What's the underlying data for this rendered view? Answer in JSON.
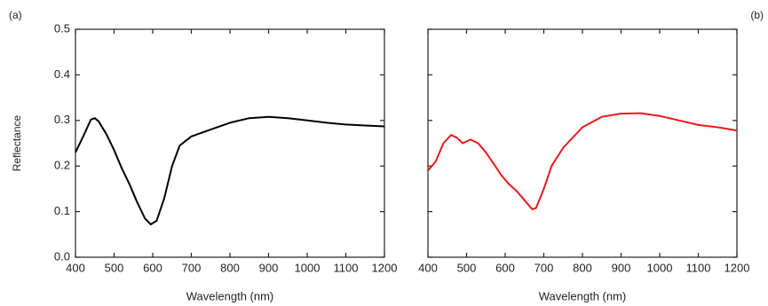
{
  "chart_data": [
    {
      "type": "line",
      "panel_label": "(a)",
      "xlabel": "Wavelength (nm)",
      "ylabel": "Reflectance",
      "x": [
        400,
        420,
        440,
        450,
        460,
        480,
        500,
        520,
        540,
        560,
        580,
        595,
        610,
        630,
        650,
        670,
        700,
        750,
        800,
        850,
        900,
        950,
        1000,
        1050,
        1100,
        1150,
        1200
      ],
      "series": [
        {
          "color": "#000000",
          "values": [
            0.23,
            0.265,
            0.302,
            0.305,
            0.298,
            0.27,
            0.235,
            0.195,
            0.16,
            0.12,
            0.085,
            0.072,
            0.08,
            0.13,
            0.2,
            0.245,
            0.265,
            0.28,
            0.295,
            0.305,
            0.308,
            0.305,
            0.3,
            0.295,
            0.291,
            0.289,
            0.287
          ]
        }
      ],
      "xlim": [
        400,
        1200
      ],
      "ylim": [
        0,
        0.5
      ],
      "xticks": [
        400,
        500,
        600,
        700,
        800,
        900,
        1000,
        1100,
        1200
      ],
      "yticks": [
        {
          "value": 0,
          "label": "0.0"
        },
        0.1,
        0.2,
        0.3,
        0.4,
        0.5
      ]
    },
    {
      "type": "line",
      "panel_label": "(b)",
      "xlabel": "Wavelength (nm)",
      "x": [
        400,
        420,
        440,
        460,
        475,
        490,
        510,
        530,
        550,
        570,
        590,
        610,
        630,
        650,
        670,
        680,
        700,
        720,
        750,
        800,
        850,
        900,
        950,
        1000,
        1050,
        1100,
        1150,
        1200
      ],
      "series": [
        {
          "color": "#e8191c",
          "values": [
            0.19,
            0.21,
            0.25,
            0.268,
            0.262,
            0.25,
            0.258,
            0.25,
            0.23,
            0.205,
            0.18,
            0.16,
            0.145,
            0.125,
            0.105,
            0.108,
            0.15,
            0.2,
            0.24,
            0.285,
            0.308,
            0.315,
            0.316,
            0.31,
            0.3,
            0.29,
            0.285,
            0.278
          ]
        }
      ],
      "xlim": [
        400,
        1200
      ],
      "ylim": [
        0,
        0.5
      ],
      "xticks": [
        400,
        500,
        600,
        700,
        800,
        900,
        1000,
        1100,
        1200
      ],
      "yticks": [
        0,
        0.1,
        0.2,
        0.3,
        0.4,
        0.5
      ]
    }
  ]
}
